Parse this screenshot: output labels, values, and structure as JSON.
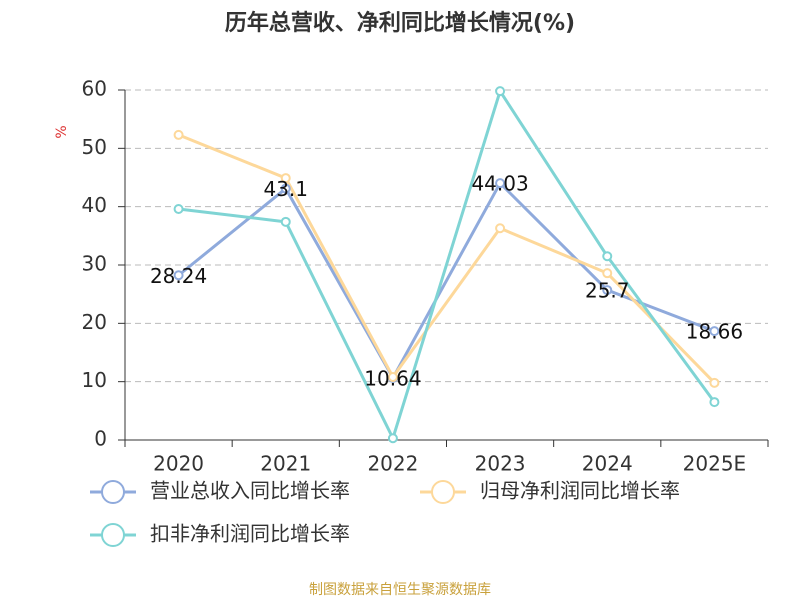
{
  "chart_data": {
    "type": "line",
    "title": "历年总营收、净利同比增长情况(%)",
    "y_label": "%",
    "categories": [
      "2020",
      "2021",
      "2022",
      "2023",
      "2024",
      "2025E"
    ],
    "series": [
      {
        "name": "营业总收入同比增长率",
        "color": "#8faadc",
        "show_labels": true,
        "values": [
          28.24,
          43.1,
          10.64,
          44.03,
          25.7,
          18.66
        ]
      },
      {
        "name": "归母净利润同比增长率",
        "color": "#fdd89a",
        "show_labels": false,
        "values": [
          52.3,
          44.9,
          10.8,
          36.3,
          28.6,
          9.8
        ]
      },
      {
        "name": "扣非净利润同比增长率",
        "color": "#7fd4d4",
        "show_labels": false,
        "values": [
          39.6,
          37.4,
          0.3,
          59.8,
          31.5,
          6.5
        ]
      }
    ],
    "ylim": [
      0,
      60
    ],
    "yticks": [
      0,
      10,
      20,
      30,
      40,
      50,
      60
    ],
    "grid": true,
    "source": "制图数据来自恒生聚源数据库"
  }
}
